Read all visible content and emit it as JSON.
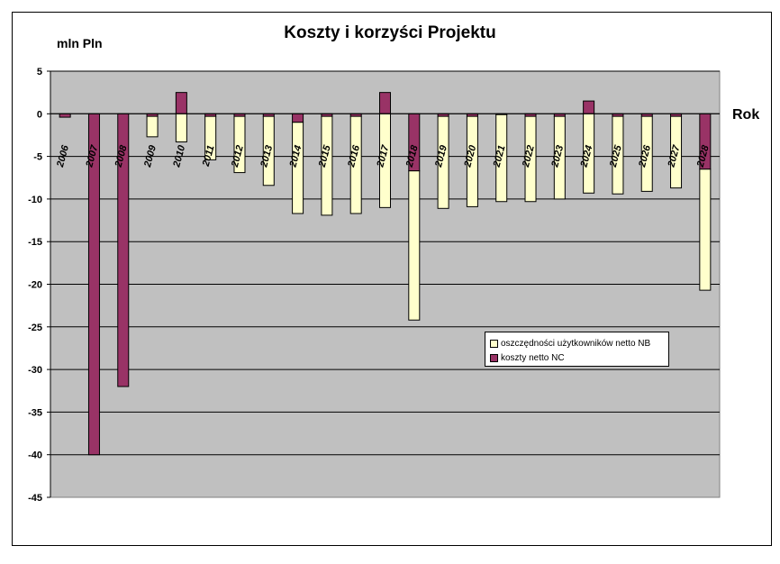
{
  "chart_data": {
    "type": "bar",
    "title": "Koszty i korzyści Projektu",
    "ylabel": "mln Pln",
    "xlabel": "Rok",
    "ylim": [
      -45,
      5
    ],
    "yticks": [
      5,
      0,
      -5,
      -10,
      -15,
      -20,
      -25,
      -30,
      -35,
      -40,
      -45
    ],
    "grid": true,
    "legend_position": "right",
    "categories": [
      "2006",
      "2007",
      "2008",
      "2009",
      "2010",
      "2011",
      "2012",
      "2013",
      "2014",
      "2015",
      "2016",
      "2017",
      "2018",
      "2019",
      "2020",
      "2021",
      "2022",
      "2023",
      "2024",
      "2025",
      "2026",
      "2027",
      "2028"
    ],
    "series": [
      {
        "name": "oszczędności użytkowników netto NB",
        "color": "#ffffcc",
        "values": [
          0,
          0,
          0,
          -2.4,
          -3.3,
          -5.1,
          -6.6,
          -8.1,
          -10.7,
          -11.6,
          -11.4,
          -11.0,
          -17.5,
          -10.8,
          -10.6,
          -10.2,
          -10.0,
          -9.7,
          -9.3,
          -9.1,
          -8.8,
          -8.4,
          -14.2
        ]
      },
      {
        "name": "koszty netto NC",
        "color": "#993366",
        "values": [
          -0.4,
          -40.0,
          -32.0,
          -0.3,
          2.5,
          -0.3,
          -0.3,
          -0.3,
          -1.0,
          -0.3,
          -0.3,
          2.5,
          -6.7,
          -0.3,
          -0.3,
          -0.1,
          -0.3,
          -0.3,
          1.5,
          -0.3,
          -0.3,
          -0.3,
          -6.5
        ]
      }
    ]
  },
  "colors": {
    "plot_background": "#c0c0c0",
    "gridline": "#000000",
    "frame": "#000000"
  }
}
